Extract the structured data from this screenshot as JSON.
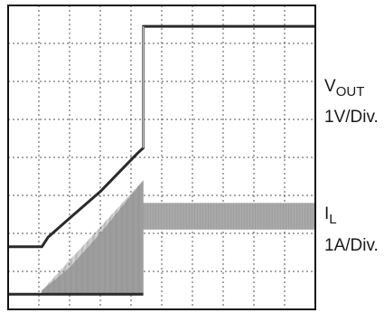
{
  "chart_data": {
    "type": "line",
    "title": "",
    "xlabel": "",
    "ylabel": "",
    "grid": true,
    "divisions": {
      "horizontal": 10,
      "vertical": 8
    },
    "series": [
      {
        "name": "VOUT",
        "label_main": "V",
        "label_sub": "OUT",
        "scale": "1V/Div.",
        "color": "#2a2a2a",
        "points_div": [
          [
            0,
            6.35
          ],
          [
            1.1,
            6.35
          ],
          [
            1.3,
            6.1
          ],
          [
            2.0,
            5.6
          ],
          [
            3.0,
            4.9
          ],
          [
            4.2,
            3.9
          ],
          [
            4.4,
            3.75
          ],
          [
            4.4,
            0.55
          ],
          [
            10,
            0.55
          ]
        ]
      },
      {
        "name": "IL",
        "label_main": "I",
        "label_sub": "L",
        "scale": "1A/Div.",
        "color": "#a9a9a9",
        "baseline_div": 7.6,
        "envelope_div": [
          [
            1.1,
            7.5
          ],
          [
            2.0,
            6.9
          ],
          [
            3.0,
            6.0
          ],
          [
            4.0,
            5.0
          ],
          [
            4.4,
            4.6
          ],
          [
            4.4,
            5.2
          ],
          [
            10,
            5.2
          ]
        ],
        "floor_div": [
          [
            1.1,
            7.6
          ],
          [
            4.4,
            7.6
          ],
          [
            4.4,
            5.9
          ],
          [
            10,
            5.9
          ]
        ]
      }
    ]
  }
}
